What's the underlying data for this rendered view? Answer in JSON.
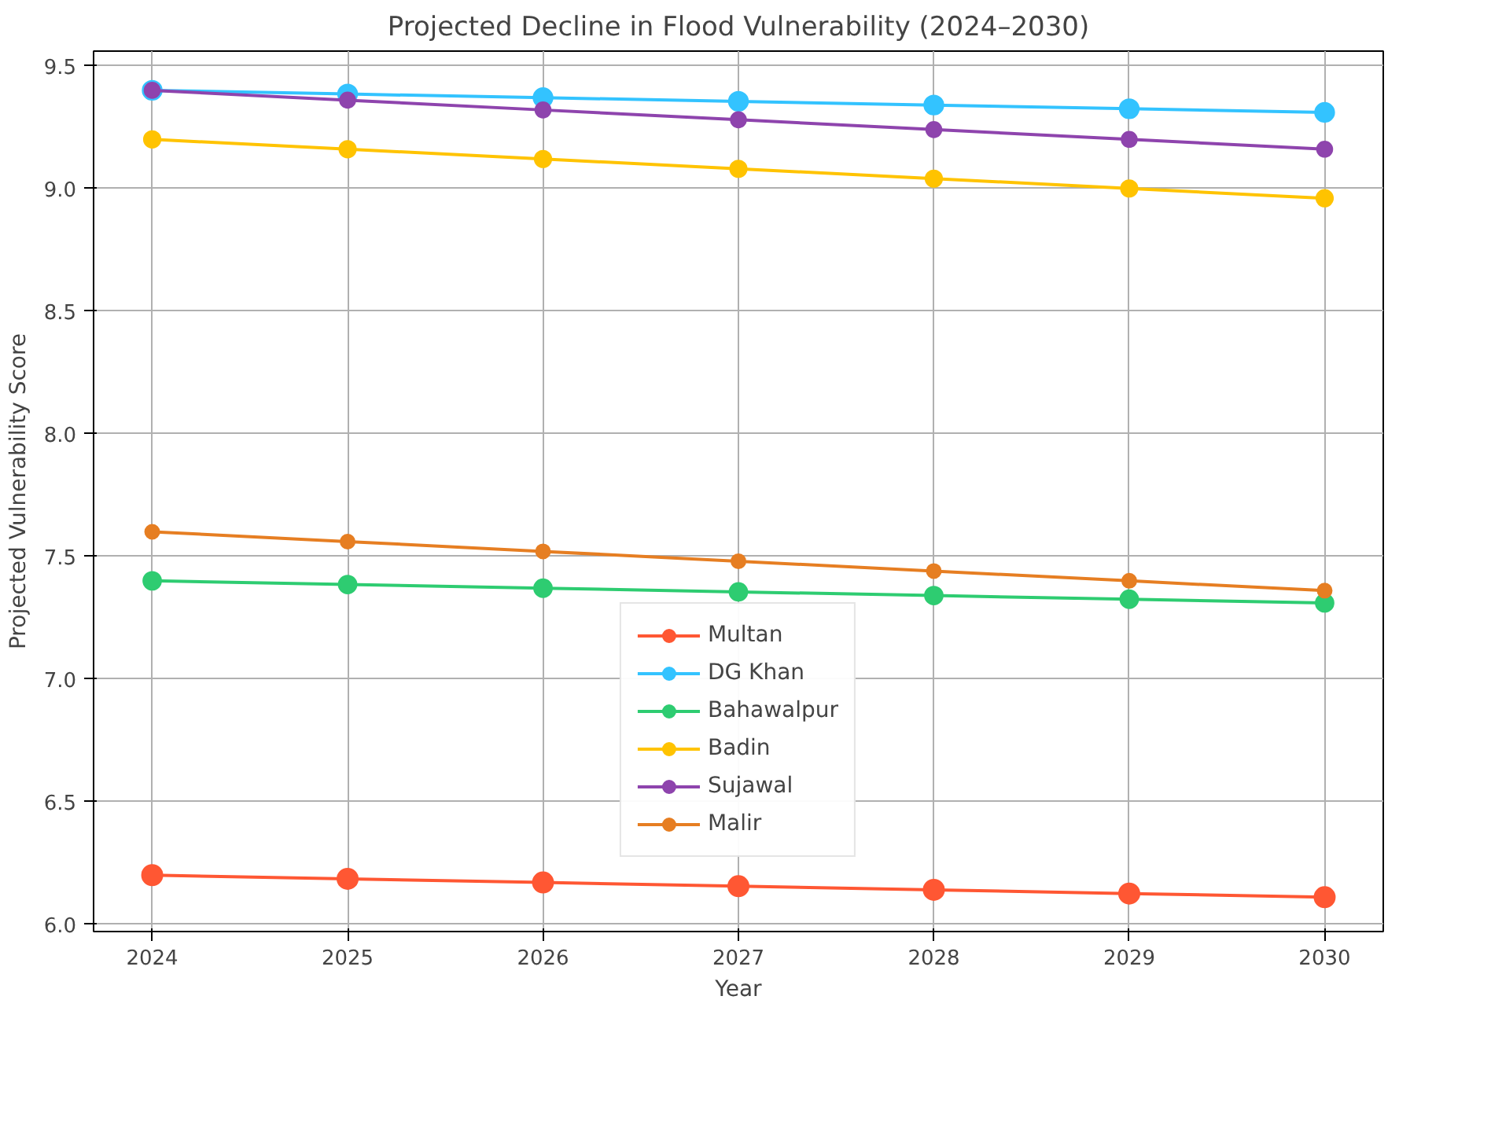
{
  "chart_data": {
    "type": "line",
    "title": "Projected Decline in Flood Vulnerability (2024–2030)",
    "xlabel": "Year",
    "ylabel": "Projected Vulnerability Score",
    "x": [
      2024,
      2025,
      2026,
      2027,
      2028,
      2029,
      2030
    ],
    "series": [
      {
        "name": "Multan",
        "color": "#ff5733",
        "values": [
          6.2,
          6.185,
          6.17,
          6.155,
          6.14,
          6.125,
          6.11
        ]
      },
      {
        "name": "DG Khan",
        "color": "#33c3ff",
        "values": [
          9.4,
          9.385,
          9.37,
          9.355,
          9.34,
          9.325,
          9.31
        ]
      },
      {
        "name": "Bahawalpur",
        "color": "#2ecc71",
        "values": [
          7.4,
          7.385,
          7.37,
          7.355,
          7.34,
          7.325,
          7.31
        ]
      },
      {
        "name": "Badin",
        "color": "#ffc300",
        "values": [
          9.2,
          9.16,
          9.12,
          9.08,
          9.04,
          9.0,
          8.96
        ]
      },
      {
        "name": "Sujawal",
        "color": "#8e44ad",
        "values": [
          9.4,
          9.36,
          9.32,
          9.28,
          9.24,
          9.2,
          9.16
        ]
      },
      {
        "name": "Malir",
        "color": "#e67e22",
        "values": [
          7.6,
          7.56,
          7.52,
          7.48,
          7.44,
          7.4,
          7.36
        ]
      }
    ],
    "xlim": [
      2023.7,
      2030.3
    ],
    "ylim": [
      5.97,
      9.56
    ],
    "xticks": [
      2024,
      2025,
      2026,
      2027,
      2028,
      2029,
      2030
    ],
    "yticks": [
      {
        "value": 6,
        "label": "6.0"
      },
      {
        "value": 6.5,
        "label": "6.5"
      },
      {
        "value": 7,
        "label": "7.0"
      },
      {
        "value": 7.5,
        "label": "7.5"
      },
      {
        "value": 8,
        "label": "8.0"
      },
      {
        "value": 8.5,
        "label": "8.5"
      },
      {
        "value": 9,
        "label": "9.0"
      },
      {
        "value": 9.5,
        "label": "9.5"
      }
    ],
    "grid": true,
    "legend": "bottom",
    "marker": "circle",
    "line_style": "solid"
  }
}
